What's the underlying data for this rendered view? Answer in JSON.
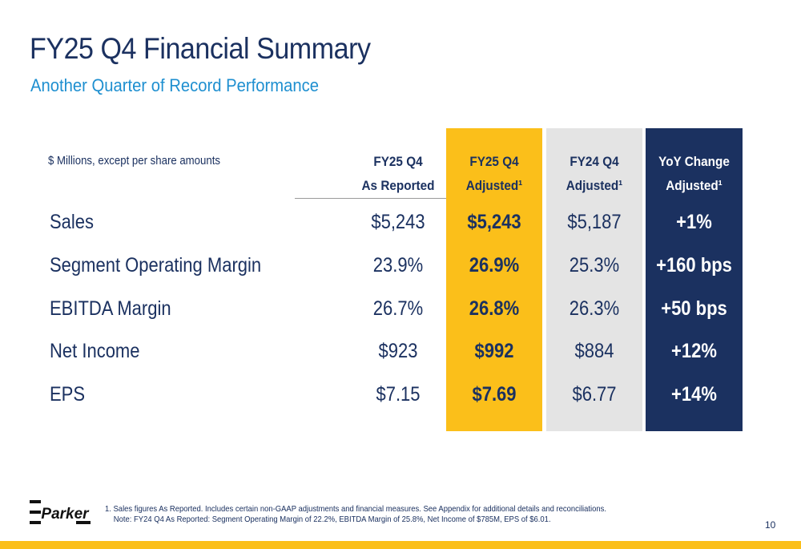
{
  "slide": {
    "title": "FY25 Q4 Financial Summary",
    "subtitle": "Another Quarter of Record Performance",
    "page_number": "10"
  },
  "table": {
    "units_note": "$ Millions, except per share amounts",
    "headers": [
      {
        "line1": "FY25 Q4",
        "line2": "As Reported"
      },
      {
        "line1": "FY25 Q4",
        "line2": "Adjusted¹"
      },
      {
        "line1": "FY24 Q4",
        "line2": "Adjusted¹"
      },
      {
        "line1": "YoY Change",
        "line2": "Adjusted¹"
      }
    ],
    "rows": [
      {
        "label": "Sales",
        "values": [
          "$5,243",
          "$5,243",
          "$5,187",
          "+1%"
        ]
      },
      {
        "label": "Segment Operating Margin",
        "values": [
          "23.9%",
          "26.9%",
          "25.3%",
          "+160 bps"
        ]
      },
      {
        "label": "EBITDA Margin",
        "values": [
          "26.7%",
          "26.8%",
          "26.3%",
          "+50 bps"
        ]
      },
      {
        "label": "Net Income",
        "values": [
          "$923",
          "$992",
          "$884",
          "+12%"
        ]
      },
      {
        "label": "EPS",
        "values": [
          "$7.15",
          "$7.69",
          "$6.77",
          "+14%"
        ]
      }
    ]
  },
  "footnote": {
    "line1": "1. Sales figures As Reported. Includes certain non-GAAP adjustments and financial measures. See Appendix for additional details and reconciliations.",
    "line2": "Note: FY24 Q4 As Reported: Segment Operating Margin of 22.2%, EBITDA Margin of 25.8%, Net Income of $785M, EPS of $6.01."
  },
  "logo": {
    "text": "Parker"
  },
  "colors": {
    "navy": "#1b3160",
    "accent_blue": "#1e8fd0",
    "gold": "#fbbf1a",
    "light_gray": "#e4e4e4"
  }
}
